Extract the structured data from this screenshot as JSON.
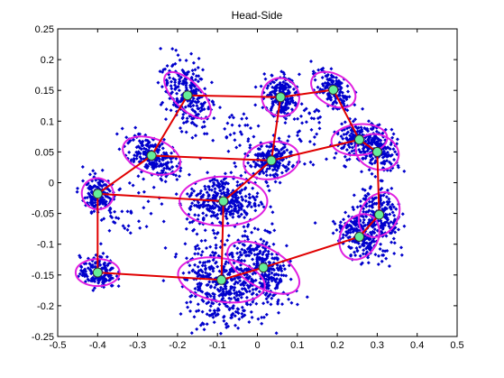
{
  "chart_data": {
    "type": "scatter",
    "title": "Head-Side",
    "xlabel": "",
    "ylabel": "",
    "xlim": [
      -0.5,
      0.5
    ],
    "ylim": [
      -0.25,
      0.25
    ],
    "xticks": [
      -0.5,
      -0.4,
      -0.3,
      -0.2,
      -0.1,
      0,
      0.1,
      0.2,
      0.3,
      0.4,
      0.5
    ],
    "yticks": [
      -0.25,
      -0.2,
      -0.15,
      -0.1,
      -0.05,
      0,
      0.05,
      0.1,
      0.15,
      0.2,
      0.25
    ],
    "xtick_labels": [
      "-0.5",
      "-0.4",
      "-0.3",
      "-0.2",
      "-0.1",
      "0",
      "0.1",
      "0.2",
      "0.3",
      "0.4",
      "0.5"
    ],
    "ytick_labels": [
      "-0.25",
      "-0.2",
      "-0.15",
      "-0.1",
      "-0.05",
      "0",
      "0.05",
      "0.1",
      "0.15",
      "0.2",
      "0.25"
    ],
    "grid": false,
    "colors": {
      "points": "#0000cc",
      "ellipses": "#e020e0",
      "edges": "#e00000",
      "nodes": "#66ee99",
      "node_outline": "#333333"
    },
    "clusters": [
      {
        "center": [
          -0.175,
          0.142
        ],
        "rx": 0.075,
        "ry": 0.022,
        "angle": -45,
        "spread": [
          0.035,
          0.025
        ],
        "n": 260
      },
      {
        "center": [
          0.058,
          0.139
        ],
        "rx": 0.048,
        "ry": 0.03,
        "angle": -60,
        "spread": [
          0.02,
          0.018
        ],
        "n": 200
      },
      {
        "center": [
          0.19,
          0.151
        ],
        "rx": 0.06,
        "ry": 0.025,
        "angle": -30,
        "spread": [
          0.025,
          0.012
        ],
        "n": 160
      },
      {
        "center": [
          -0.265,
          0.044
        ],
        "rx": 0.075,
        "ry": 0.028,
        "angle": -20,
        "spread": [
          0.032,
          0.015
        ],
        "n": 220
      },
      {
        "center": [
          0.035,
          0.036
        ],
        "rx": 0.07,
        "ry": 0.03,
        "angle": 10,
        "spread": [
          0.03,
          0.015
        ],
        "n": 200
      },
      {
        "center": [
          0.255,
          0.07
        ],
        "rx": 0.07,
        "ry": 0.025,
        "angle": 5,
        "spread": [
          0.03,
          0.014
        ],
        "n": 170
      },
      {
        "center": [
          0.3,
          0.05
        ],
        "rx": 0.055,
        "ry": 0.028,
        "angle": -20,
        "spread": [
          0.025,
          0.016
        ],
        "n": 170
      },
      {
        "center": [
          -0.4,
          -0.018
        ],
        "rx": 0.04,
        "ry": 0.025,
        "angle": -30,
        "spread": [
          0.018,
          0.015
        ],
        "n": 150
      },
      {
        "center": [
          -0.085,
          -0.03
        ],
        "rx": 0.11,
        "ry": 0.04,
        "angle": 0,
        "spread": [
          0.045,
          0.022
        ],
        "n": 330
      },
      {
        "center": [
          0.305,
          -0.052
        ],
        "rx": 0.06,
        "ry": 0.03,
        "angle": 55,
        "spread": [
          0.02,
          0.028
        ],
        "n": 200
      },
      {
        "center": [
          0.255,
          -0.088
        ],
        "rx": 0.06,
        "ry": 0.03,
        "angle": 60,
        "spread": [
          0.018,
          0.03
        ],
        "n": 200
      },
      {
        "center": [
          -0.4,
          -0.146
        ],
        "rx": 0.055,
        "ry": 0.022,
        "angle": 0,
        "spread": [
          0.022,
          0.013
        ],
        "n": 160
      },
      {
        "center": [
          -0.09,
          -0.158
        ],
        "rx": 0.11,
        "ry": 0.035,
        "angle": -10,
        "spread": [
          0.05,
          0.03
        ],
        "n": 340
      },
      {
        "center": [
          0.015,
          -0.138
        ],
        "rx": 0.1,
        "ry": 0.032,
        "angle": -30,
        "spread": [
          0.04,
          0.022
        ],
        "n": 280
      }
    ],
    "edges": [
      [
        0,
        1
      ],
      [
        1,
        2
      ],
      [
        2,
        5
      ],
      [
        0,
        3
      ],
      [
        3,
        4
      ],
      [
        4,
        1
      ],
      [
        4,
        5
      ],
      [
        5,
        6
      ],
      [
        3,
        7
      ],
      [
        7,
        8
      ],
      [
        4,
        8
      ],
      [
        8,
        12
      ],
      [
        6,
        9
      ],
      [
        9,
        10
      ],
      [
        10,
        13
      ],
      [
        13,
        12
      ],
      [
        12,
        11
      ],
      [
        11,
        7
      ]
    ],
    "extra_scatter_regions": [
      {
        "center": [
          -0.08,
          -0.21
        ],
        "spread": [
          0.04,
          0.02
        ],
        "n": 80
      },
      {
        "center": [
          0.12,
          0.1
        ],
        "spread": [
          0.04,
          0.03
        ],
        "n": 40
      },
      {
        "center": [
          -0.05,
          0.08
        ],
        "spread": [
          0.03,
          0.02
        ],
        "n": 30
      },
      {
        "center": [
          -0.33,
          -0.05
        ],
        "spread": [
          0.04,
          0.03
        ],
        "n": 40
      }
    ]
  }
}
